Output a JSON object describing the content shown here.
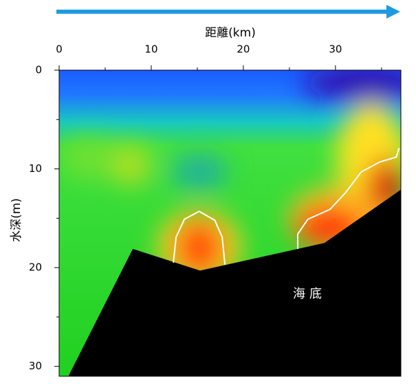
{
  "chart_data": {
    "type": "contour",
    "x_label": "距離(km)",
    "y_label": "水深(m)",
    "annotation": "海底",
    "xlim": [
      0,
      37.1
    ],
    "ylim": [
      0,
      31
    ],
    "xticks": [
      0,
      10,
      20,
      30
    ],
    "yticks": [
      0,
      10,
      20,
      30
    ],
    "seafloor": {
      "color": "#000000",
      "x": [
        1.0,
        8.0,
        15.3,
        28.8,
        37.1
      ],
      "y": [
        31,
        18.1,
        20.3,
        17.5,
        12.1
      ]
    },
    "contours": [
      {
        "color": "#ffffff",
        "x": [
          12.4,
          12.7,
          13.6,
          15.2,
          16.9,
          17.7,
          18.0
        ],
        "y": [
          19.5,
          16.9,
          15.1,
          14.3,
          15.2,
          16.9,
          19.7
        ]
      },
      {
        "color": "#ffffff",
        "x": [
          25.9,
          25.9,
          27.0,
          29.4,
          31.1,
          32.8,
          34.8,
          36.6,
          36.9
        ],
        "y": [
          18.1,
          16.6,
          15.1,
          14.1,
          12.4,
          10.3,
          9.3,
          8.8,
          7.9
        ]
      }
    ]
  }
}
